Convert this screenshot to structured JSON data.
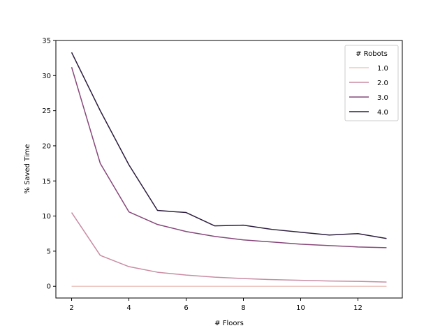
{
  "chart_data": {
    "type": "line",
    "xlabel": "# Floors",
    "ylabel": "% Saved Time",
    "xlim": [
      1.45,
      13.55
    ],
    "ylim": [
      -1.67,
      35
    ],
    "xticks": [
      2,
      4,
      6,
      8,
      10,
      12
    ],
    "yticks": [
      0,
      5,
      10,
      15,
      20,
      25,
      30,
      35
    ],
    "grid": false,
    "legend": {
      "title": "# Robots",
      "placement": "top-right"
    },
    "x": [
      2,
      3,
      4,
      5,
      6,
      7,
      8,
      9,
      10,
      11,
      12,
      13
    ],
    "series": [
      {
        "name": "1.0",
        "color": "#eec9c4",
        "values": [
          0,
          0,
          0,
          0,
          0,
          0,
          0,
          0,
          0,
          0,
          0,
          0
        ]
      },
      {
        "name": "2.0",
        "color": "#c98ca3",
        "values": [
          10.5,
          4.4,
          2.8,
          2.0,
          1.6,
          1.3,
          1.1,
          0.95,
          0.85,
          0.75,
          0.7,
          0.6
        ]
      },
      {
        "name": "3.0",
        "color": "#86487a",
        "values": [
          31.2,
          17.5,
          10.6,
          8.8,
          7.8,
          7.1,
          6.6,
          6.3,
          6.0,
          5.8,
          5.6,
          5.5
        ]
      },
      {
        "name": "4.0",
        "color": "#2d1e3e",
        "values": [
          33.3,
          25.0,
          17.3,
          10.8,
          10.5,
          8.6,
          8.7,
          8.1,
          7.7,
          7.3,
          7.5,
          6.8
        ]
      }
    ]
  }
}
